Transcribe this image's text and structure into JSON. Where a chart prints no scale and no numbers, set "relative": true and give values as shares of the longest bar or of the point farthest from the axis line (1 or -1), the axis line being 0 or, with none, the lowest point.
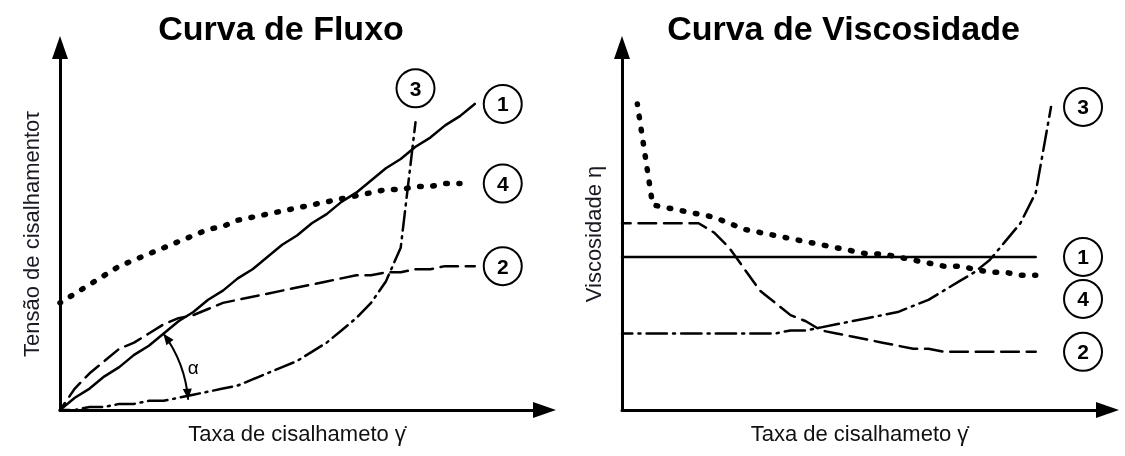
{
  "chart_data": [
    {
      "type": "line",
      "title": "Curva de Fluxo",
      "xlabel": "Taxa de cisalhameto γ̇",
      "ylabel": "Tensão de cisalhamentoτ",
      "relative": true,
      "marker": "none",
      "annotations": [
        "α"
      ],
      "categories": [
        null,
        null,
        null,
        null,
        null,
        null,
        null,
        null,
        null,
        null,
        null,
        null,
        null,
        null,
        null,
        null,
        null,
        null,
        null,
        null,
        null,
        null,
        null,
        null,
        null,
        null,
        null,
        null,
        null,
        null,
        null,
        null,
        null
      ],
      "series": [
        {
          "name": "1",
          "color": "#000000",
          "line_style": "solid",
          "values": [
            0,
            0.04,
            0.07,
            0.11,
            0.14,
            0.18,
            0.21,
            0.25,
            0.29,
            0.32,
            0.36,
            0.39,
            0.43,
            0.46,
            0.5,
            0.54,
            0.57,
            0.61,
            0.64,
            0.68,
            0.71,
            0.75,
            0.79,
            0.82,
            0.86,
            0.89,
            0.93,
            0.96,
            1,
            null,
            null,
            null,
            null
          ]
        },
        {
          "name": "2",
          "color": "#000000",
          "line_style": "dashed",
          "values": [
            0,
            0.07,
            0.12,
            0.16,
            0.2,
            0.22,
            0.25,
            0.28,
            0.3,
            0.31,
            0.33,
            0.35,
            0.36,
            0.37,
            0.38,
            0.39,
            0.4,
            0.41,
            0.42,
            0.43,
            0.44,
            0.44,
            0.45,
            0.45,
            0.46,
            0.46,
            0.47,
            0.47,
            0.47,
            null,
            null,
            null,
            null
          ]
        },
        {
          "name": "3",
          "color": "#000000",
          "line_style": "dashdot",
          "values": [
            0,
            0,
            0.01,
            0.01,
            0.02,
            0.02,
            0.03,
            0.03,
            0.04,
            0.05,
            0.06,
            0.07,
            0.08,
            0.1,
            0.12,
            0.14,
            0.16,
            0.19,
            0.22,
            0.26,
            0.3,
            0.35,
            0.42,
            0.53,
            0.94,
            null,
            null,
            null,
            null,
            null,
            null,
            null,
            null
          ]
        },
        {
          "name": "4",
          "color": "#000000",
          "line_style": "dotted",
          "values": [
            0.35,
            0.38,
            0.41,
            0.44,
            0.47,
            0.49,
            0.51,
            0.53,
            0.55,
            0.57,
            0.59,
            0.6,
            0.62,
            0.63,
            0.64,
            0.65,
            0.66,
            0.67,
            0.68,
            0.69,
            0.7,
            0.71,
            0.72,
            0.72,
            0.73,
            0.73,
            0.74,
            0.74,
            null,
            null,
            null,
            null,
            null
          ]
        }
      ]
    },
    {
      "type": "line",
      "title": "Curva de Viscosidade",
      "xlabel": "Taxa de cisalhameto γ̇",
      "ylabel": "Viscosidade η",
      "relative": true,
      "marker": "none",
      "legend": "right",
      "categories": [
        null,
        null,
        null,
        null,
        null,
        null,
        null,
        null,
        null,
        null,
        null,
        null,
        null,
        null,
        null,
        null,
        null,
        null,
        null,
        null,
        null,
        null,
        null,
        null,
        null,
        null,
        null,
        null,
        null,
        null,
        null,
        null
      ],
      "series": [
        {
          "name": "1",
          "color": "#000000",
          "line_style": "solid",
          "values": [
            0.5,
            0.5,
            0.5,
            0.5,
            0.5,
            0.5,
            0.5,
            0.5,
            0.5,
            0.5,
            0.5,
            0.5,
            0.5,
            0.5,
            0.5,
            0.5,
            0.5,
            0.5,
            0.5,
            0.5,
            0.5,
            0.5,
            0.5,
            0.5,
            0.5,
            0.5,
            0.5,
            0.5,
            null,
            null,
            null,
            null
          ]
        },
        {
          "name": "2",
          "color": "#000000",
          "line_style": "dashed",
          "values": [
            0.61,
            0.61,
            0.61,
            0.61,
            0.61,
            0.61,
            0.58,
            0.53,
            0.46,
            0.39,
            0.35,
            0.31,
            0.29,
            0.26,
            0.25,
            0.24,
            0.23,
            0.22,
            0.21,
            0.2,
            0.2,
            0.19,
            0.19,
            0.19,
            0.19,
            0.19,
            0.19,
            0.19,
            null,
            null,
            null,
            null
          ]
        },
        {
          "name": "3",
          "color": "#000000",
          "line_style": "dashdot",
          "values": [
            0.25,
            0.25,
            0.25,
            0.25,
            0.25,
            0.25,
            0.25,
            0.25,
            0.25,
            0.25,
            0.25,
            0.26,
            0.26,
            0.27,
            0.28,
            0.29,
            0.3,
            0.31,
            0.32,
            0.34,
            0.36,
            0.39,
            0.42,
            0.45,
            0.49,
            0.55,
            0.61,
            0.71,
            0.99,
            null,
            null,
            null
          ]
        },
        {
          "name": "4",
          "color": "#000000",
          "line_style": "dotted",
          "values": [
            null,
            1,
            0.67,
            0.66,
            0.65,
            0.64,
            0.63,
            0.61,
            0.59,
            0.58,
            0.57,
            0.56,
            0.55,
            0.54,
            0.53,
            0.52,
            0.51,
            0.51,
            0.5,
            0.49,
            0.48,
            0.47,
            0.47,
            0.46,
            0.45,
            0.45,
            0.44,
            0.44,
            null,
            null,
            null,
            null
          ]
        }
      ]
    }
  ]
}
